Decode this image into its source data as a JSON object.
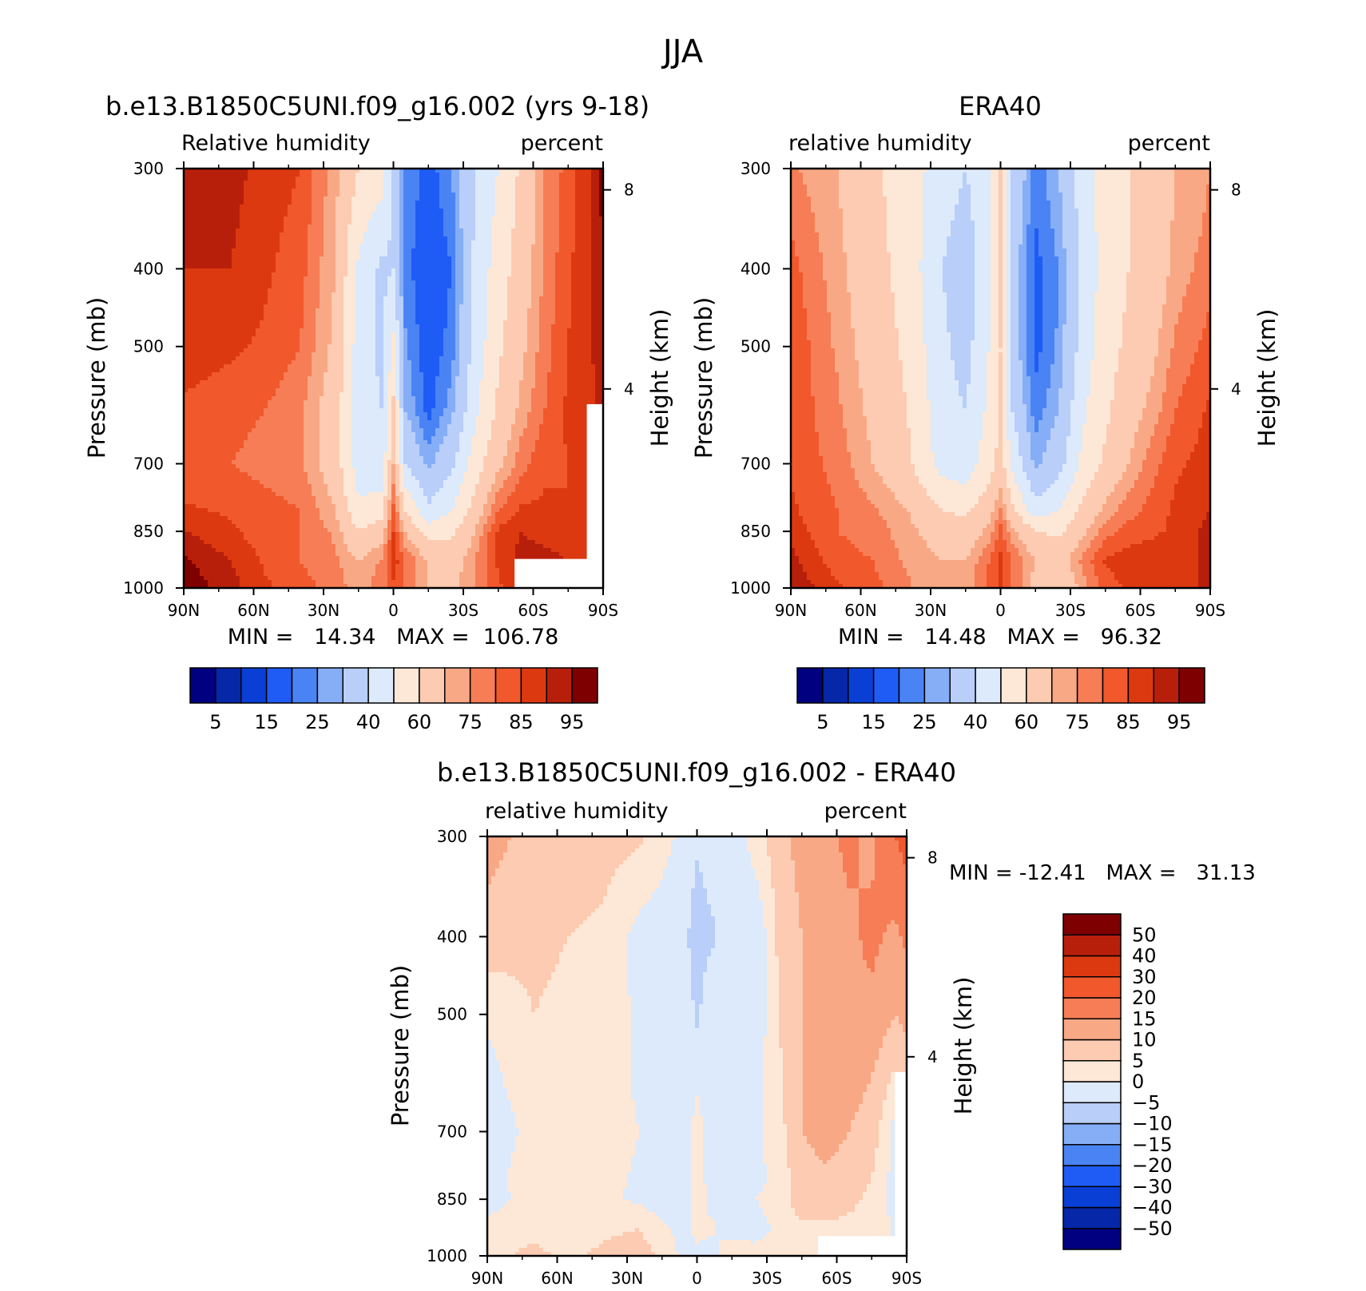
{
  "page_title": "JJA",
  "palettes": {
    "absolute": [
      "#000080",
      "#0527a8",
      "#0a3fd6",
      "#1e5cf5",
      "#4a83f4",
      "#86aef7",
      "#b9cef9",
      "#dceafb",
      "#fde7d6",
      "#fccbb1",
      "#f9a885",
      "#f67d55",
      "#f1582c",
      "#dc3911",
      "#b81f0b",
      "#7e0000"
    ],
    "difference": [
      "#000080",
      "#0527a8",
      "#0a3fd6",
      "#1e5cf5",
      "#4a83f4",
      "#86aef7",
      "#b9cef9",
      "#dceafb",
      "#fde7d6",
      "#fccbb1",
      "#f9a885",
      "#f67d55",
      "#f1582c",
      "#dc3911",
      "#b81f0b",
      "#7e0000"
    ]
  },
  "chart_data": [
    {
      "type": "heatmap",
      "title": "b.e13.B1850C5UNI.f09_g16.002 (yrs 9-18)",
      "left_subtitle": "Relative humidity",
      "right_subtitle": "percent",
      "ylabel": "Pressure (mb)",
      "ylabel_right": "Height (km)",
      "x_ticks": [
        "90N",
        "60N",
        "30N",
        "0",
        "30S",
        "60S",
        "90S"
      ],
      "y_ticks": [
        300,
        400,
        500,
        700,
        850,
        1000
      ],
      "y_right_ticks": [
        8,
        4
      ],
      "stats": "MIN =   14.34   MAX =  106.78",
      "colorbar_labels": [
        "5",
        "15",
        "25",
        "40",
        "60",
        "75",
        "85",
        "95"
      ],
      "levels": [
        5,
        10,
        15,
        20,
        25,
        30,
        40,
        50,
        60,
        70,
        75,
        80,
        85,
        90,
        95
      ],
      "log_pressure": true,
      "latitudes": [
        90,
        70,
        55,
        40,
        25,
        15,
        5,
        0,
        -5,
        -15,
        -25,
        -35,
        -45,
        -55,
        -65,
        -75,
        -85,
        -90
      ],
      "pressures": [
        300,
        400,
        500,
        600,
        700,
        800,
        850,
        925,
        1000
      ],
      "values": [
        [
          90,
          92,
          88,
          85,
          72,
          60,
          55,
          35,
          25,
          17,
          25,
          40,
          50,
          62,
          75,
          82,
          90,
          97
        ],
        [
          90,
          90,
          86,
          82,
          70,
          48,
          38,
          40,
          22,
          15,
          20,
          42,
          55,
          65,
          76,
          84,
          90,
          95
        ],
        [
          88,
          86,
          84,
          80,
          68,
          45,
          38,
          52,
          26,
          16,
          22,
          44,
          58,
          68,
          78,
          85,
          90,
          94
        ],
        [
          84,
          82,
          80,
          76,
          65,
          44,
          40,
          62,
          30,
          18,
          28,
          48,
          62,
          72,
          80,
          86,
          88,
          92
        ],
        [
          80,
          80,
          78,
          76,
          65,
          45,
          42,
          70,
          40,
          28,
          38,
          55,
          68,
          78,
          84,
          85,
          86,
          90
        ],
        [
          86,
          84,
          82,
          80,
          70,
          52,
          55,
          82,
          60,
          42,
          50,
          64,
          80,
          86,
          86,
          85,
          86,
          88
        ],
        [
          90,
          86,
          82,
          80,
          74,
          60,
          66,
          85,
          70,
          55,
          58,
          70,
          86,
          90,
          88,
          86,
          88,
          90
        ],
        [
          96,
          90,
          84,
          80,
          76,
          70,
          76,
          88,
          80,
          70,
          66,
          75,
          86,
          92,
          92,
          90,
          88,
          90
        ],
        [
          99,
          92,
          86,
          82,
          78,
          72,
          78,
          84,
          78,
          70,
          68,
          74,
          84,
          88,
          90,
          92,
          90,
          90
        ]
      ],
      "missing_regions": [
        {
          "lat_from": -52,
          "lat_to": -90,
          "p_from": 920,
          "p_to": 1000
        },
        {
          "lat_from": -83,
          "lat_to": -90,
          "p_from": 590,
          "p_to": 1000
        }
      ]
    },
    {
      "type": "heatmap",
      "title": "ERA40",
      "left_subtitle": "relative humidity",
      "right_subtitle": "percent",
      "ylabel": "Pressure (mb)",
      "ylabel_right": "Height (km)",
      "x_ticks": [
        "90N",
        "60N",
        "30N",
        "0",
        "30S",
        "60S",
        "90S"
      ],
      "y_ticks": [
        300,
        400,
        500,
        700,
        850,
        1000
      ],
      "y_right_ticks": [
        8,
        4
      ],
      "stats": "MIN =   14.48   MAX =   96.32",
      "colorbar_labels": [
        "5",
        "15",
        "25",
        "40",
        "60",
        "75",
        "85",
        "95"
      ],
      "levels": [
        5,
        10,
        15,
        20,
        25,
        30,
        40,
        50,
        60,
        70,
        75,
        80,
        85,
        90,
        95
      ],
      "log_pressure": true,
      "latitudes": [
        90,
        70,
        55,
        40,
        25,
        15,
        5,
        0,
        -5,
        -15,
        -25,
        -35,
        -45,
        -55,
        -65,
        -75,
        -85,
        -90
      ],
      "pressures": [
        300,
        400,
        500,
        600,
        700,
        800,
        850,
        925,
        1000
      ],
      "values": [
        [
          76,
          70,
          62,
          55,
          45,
          40,
          46,
          62,
          40,
          22,
          30,
          45,
          55,
          60,
          62,
          70,
          72,
          75
        ],
        [
          82,
          72,
          64,
          56,
          40,
          34,
          48,
          60,
          35,
          18,
          25,
          42,
          54,
          60,
          64,
          72,
          76,
          78
        ],
        [
          84,
          74,
          66,
          58,
          42,
          36,
          50,
          60,
          35,
          18,
          26,
          44,
          56,
          62,
          68,
          76,
          80,
          82
        ],
        [
          84,
          76,
          68,
          60,
          44,
          40,
          52,
          60,
          40,
          22,
          30,
          48,
          58,
          66,
          72,
          80,
          84,
          86
        ],
        [
          84,
          78,
          70,
          62,
          46,
          44,
          56,
          64,
          48,
          28,
          36,
          52,
          62,
          70,
          78,
          84,
          86,
          88
        ],
        [
          86,
          80,
          76,
          70,
          60,
          58,
          66,
          76,
          62,
          44,
          50,
          62,
          72,
          78,
          82,
          86,
          88,
          90
        ],
        [
          88,
          80,
          78,
          72,
          66,
          64,
          72,
          82,
          72,
          60,
          58,
          68,
          78,
          82,
          84,
          86,
          90,
          92
        ],
        [
          92,
          82,
          80,
          74,
          70,
          70,
          80,
          86,
          80,
          70,
          66,
          76,
          86,
          88,
          88,
          88,
          90,
          94
        ],
        [
          94,
          86,
          82,
          76,
          70,
          72,
          82,
          86,
          80,
          66,
          62,
          72,
          82,
          86,
          86,
          88,
          90,
          94
        ]
      ],
      "missing_regions": []
    },
    {
      "type": "heatmap",
      "title": "b.e13.B1850C5UNI.f09_g16.002 - ERA40",
      "left_subtitle": "relative humidity",
      "right_subtitle": "percent",
      "ylabel": "Pressure (mb)",
      "ylabel_right": "Height (km)",
      "x_ticks": [
        "90N",
        "60N",
        "30N",
        "0",
        "30S",
        "60S",
        "90S"
      ],
      "y_ticks": [
        300,
        400,
        500,
        700,
        850,
        1000
      ],
      "y_right_ticks": [
        8,
        4
      ],
      "stats": "MIN = -12.41   MAX =   31.13",
      "colorbar_labels": [
        "50",
        "40",
        "30",
        "20",
        "15",
        "10",
        "5",
        "0",
        "-5",
        "-10",
        "-15",
        "-20",
        "-30",
        "-40",
        "-50"
      ],
      "levels": [
        -50,
        -40,
        -30,
        -20,
        -15,
        -10,
        -5,
        0,
        5,
        10,
        15,
        20,
        30,
        40,
        50
      ],
      "log_pressure": true,
      "latitudes": [
        90,
        70,
        55,
        40,
        25,
        15,
        5,
        0,
        -5,
        -15,
        -25,
        -35,
        -45,
        -55,
        -65,
        -75,
        -85,
        -90
      ],
      "pressures": [
        300,
        400,
        500,
        600,
        700,
        800,
        850,
        925,
        1000
      ],
      "values": [
        [
          12,
          8,
          8,
          7,
          6,
          2,
          -2,
          -4,
          -3,
          -5,
          3,
          8,
          12,
          14,
          16,
          14,
          20,
          22
        ],
        [
          8,
          6,
          5,
          4,
          -2,
          -3,
          -4,
          -8,
          -6,
          -3,
          -5,
          6,
          10,
          12,
          14,
          16,
          14,
          16
        ],
        [
          1,
          5,
          4,
          3,
          -1,
          -1,
          -2,
          -6,
          -2,
          -2,
          -4,
          5,
          10,
          12,
          14,
          14,
          10,
          12
        ],
        [
          -2,
          4,
          4,
          3,
          -1,
          -1,
          -3,
          -1,
          -3,
          -4,
          -2,
          4,
          10,
          12,
          12,
          10,
          4,
          6
        ],
        [
          -4,
          2,
          4,
          3,
          0,
          -1,
          -2,
          2,
          -2,
          -2,
          -1,
          3,
          10,
          12,
          10,
          8,
          -2,
          2
        ],
        [
          -2,
          3,
          3,
          2,
          -1,
          -1,
          -2,
          4,
          -2,
          -2,
          -2,
          2,
          8,
          9,
          8,
          5,
          -2,
          -2
        ],
        [
          -3,
          3,
          2,
          1,
          -1,
          -3,
          -2,
          3,
          -1,
          -3,
          0,
          2,
          8,
          8,
          6,
          4,
          -2,
          -2
        ],
        [
          2,
          4,
          3,
          4,
          5,
          1,
          -2,
          2,
          1,
          -2,
          -2,
          1,
          4,
          4,
          4,
          4,
          -1,
          -2
        ],
        [
          4,
          6,
          4,
          6,
          8,
          4,
          -2,
          -2,
          -2,
          3,
          2,
          2,
          2,
          2,
          4,
          4,
          0,
          0
        ]
      ],
      "missing_regions": [
        {
          "lat_from": -52,
          "lat_to": -90,
          "p_from": 945,
          "p_to": 1000
        },
        {
          "lat_from": -85,
          "lat_to": -90,
          "p_from": 590,
          "p_to": 1000
        }
      ]
    }
  ]
}
